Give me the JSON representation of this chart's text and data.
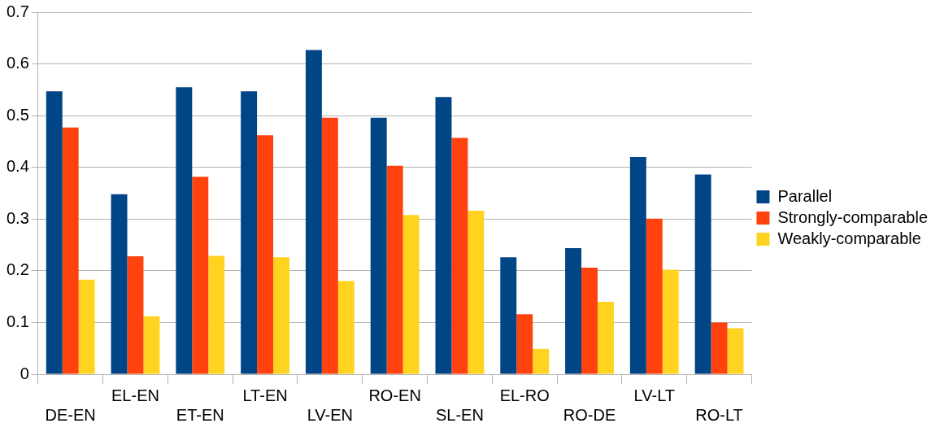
{
  "chart_data": {
    "type": "bar",
    "categories": [
      "DE-EN",
      "EL-EN",
      "ET-EN",
      "LT-EN",
      "LV-EN",
      "RO-EN",
      "SL-EN",
      "EL-RO",
      "RO-DE",
      "LV-LT",
      "RO-LT"
    ],
    "series": [
      {
        "name": "Parallel",
        "color": "#004586",
        "values": [
          0.547,
          0.348,
          0.555,
          0.547,
          0.627,
          0.496,
          0.536,
          0.226,
          0.244,
          0.42,
          0.386
        ]
      },
      {
        "name": "Strongly-comparable",
        "color": "#ff420e",
        "values": [
          0.477,
          0.228,
          0.382,
          0.462,
          0.496,
          0.403,
          0.457,
          0.116,
          0.206,
          0.301,
          0.1
        ]
      },
      {
        "name": "Weakly-comparable",
        "color": "#ffd320",
        "values": [
          0.183,
          0.112,
          0.229,
          0.226,
          0.18,
          0.308,
          0.316,
          0.049,
          0.14,
          0.202,
          0.089
        ]
      }
    ],
    "ylim": [
      0,
      0.7
    ],
    "yticks": [
      0,
      0.1,
      0.2,
      0.3,
      0.4,
      0.5,
      0.6,
      0.7
    ],
    "grid": "y",
    "legend": "right"
  }
}
